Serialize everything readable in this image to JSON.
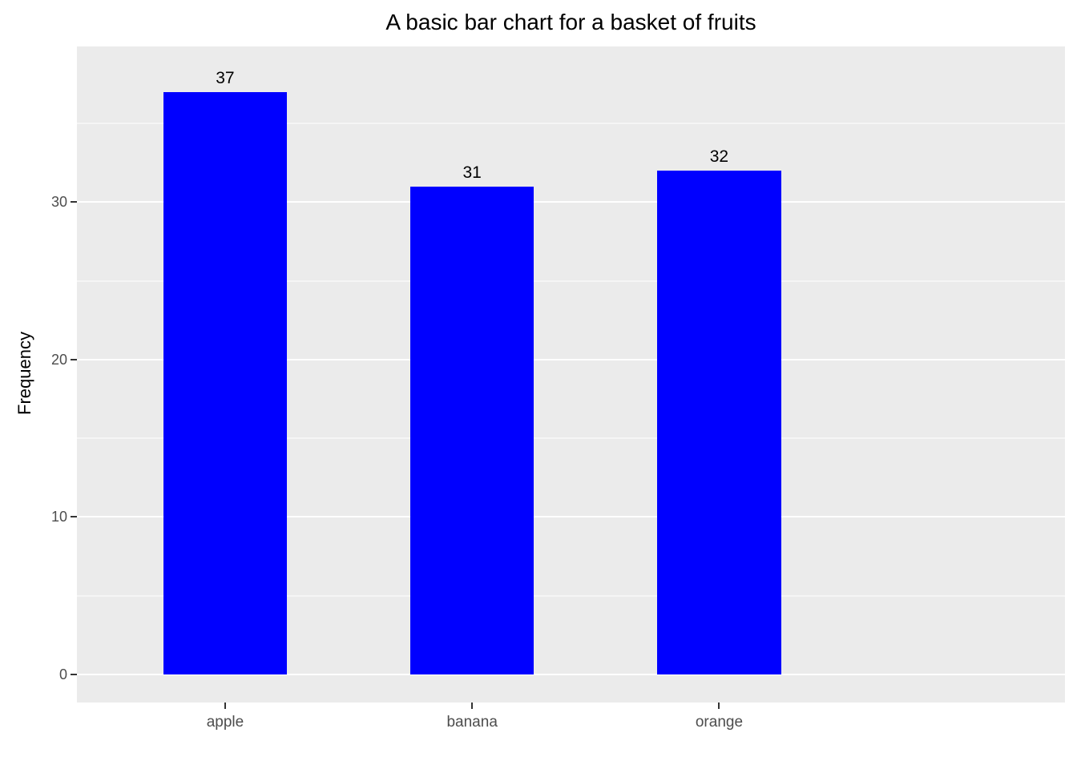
{
  "chart_data": {
    "type": "bar",
    "title": "A basic bar chart for a basket of fruits",
    "xlabel": "",
    "ylabel": "Frequency",
    "categories": [
      "apple",
      "banana",
      "orange"
    ],
    "values": [
      37,
      31,
      32
    ],
    "bar_labels": [
      "37",
      "31",
      "32"
    ],
    "ylim": [
      -1.78,
      39.88
    ],
    "yticks_major": [
      0,
      10,
      20,
      30
    ],
    "yticks_minor": [
      5,
      15,
      25,
      35
    ],
    "grid": true,
    "legend": "none",
    "colors": {
      "bar_fill": "#0000FF",
      "panel_background": "#EBEBEB",
      "gridline": "#FFFFFF",
      "tick_mark": "#333333",
      "tick_label": "#4D4D4D",
      "title_text": "#000000",
      "figure_background": "#FFFFFF"
    },
    "layout_hints": {
      "bar_width_units": 0.5,
      "category_outer_padding_units": 0.6,
      "title_align": "center"
    }
  }
}
